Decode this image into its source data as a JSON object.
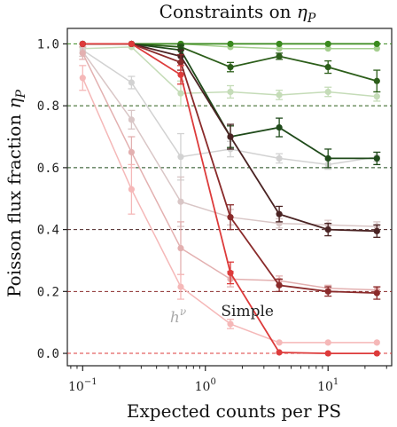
{
  "chart_data": {
    "type": "line",
    "title": "Constraints on η_P",
    "title_parts": {
      "prefix": "Constraints on ",
      "symbol": "η",
      "subscript": "P"
    },
    "xlabel": "Expected counts per PS",
    "ylabel": "Poisson flux fraction η_P",
    "ylabel_parts": {
      "prefix": "Poisson flux fraction ",
      "symbol": "η",
      "subscript": "P"
    },
    "x_scale": "log",
    "xlim": [
      0.075,
      33
    ],
    "ylim": [
      -0.04,
      1.05
    ],
    "x_ticks": [
      {
        "value": 0.1,
        "base": "10",
        "exp": "−1"
      },
      {
        "value": 1,
        "base": "10",
        "exp": "0"
      },
      {
        "value": 10,
        "base": "10",
        "exp": "1"
      }
    ],
    "y_ticks": [
      {
        "value": 0.0,
        "label": "0.0"
      },
      {
        "value": 0.2,
        "label": "0.2"
      },
      {
        "value": 0.4,
        "label": "0.4"
      },
      {
        "value": 0.6,
        "label": "0.6"
      },
      {
        "value": 0.8,
        "label": "0.8"
      },
      {
        "value": 1.0,
        "label": "1.0"
      }
    ],
    "x": [
      0.1,
      0.25,
      0.63,
      1.6,
      4.0,
      10.0,
      25.0
    ],
    "grid": false,
    "legend": "none",
    "annotations": [
      {
        "text_base": "h",
        "text_sup": "ν",
        "x": 0.6,
        "y": 0.1,
        "color": "#aaaaaa",
        "style": "italic"
      },
      {
        "text": "Simple",
        "x": 2.2,
        "y": 0.12,
        "color": "#222222",
        "style": "normal"
      }
    ],
    "series": [
      {
        "group": "simple",
        "target": 1.0,
        "color": "#3a8a1e",
        "y": [
          1.0,
          1.0,
          1.0,
          1.0,
          1.0,
          1.0,
          1.0
        ],
        "err": [
          0.004,
          0.004,
          0.004,
          0.004,
          0.004,
          0.004,
          0.004
        ]
      },
      {
        "group": "simple",
        "target": 0.8,
        "color": "#2c5e1a",
        "y": [
          1.0,
          1.0,
          0.99,
          0.925,
          0.96,
          0.925,
          0.88
        ],
        "err": [
          0.004,
          0.004,
          0.01,
          0.015,
          0.01,
          0.02,
          0.035
        ]
      },
      {
        "group": "simple",
        "target": 0.6,
        "color": "#1f4a1a",
        "y": [
          1.0,
          1.0,
          0.98,
          0.7,
          0.73,
          0.63,
          0.63
        ],
        "err": [
          0.004,
          0.004,
          0.015,
          0.035,
          0.03,
          0.03,
          0.02
        ]
      },
      {
        "group": "simple",
        "target": 0.4,
        "color": "#4a2323",
        "y": [
          1.0,
          1.0,
          0.96,
          0.7,
          0.45,
          0.4,
          0.395
        ],
        "err": [
          0.004,
          0.004,
          0.02,
          0.04,
          0.025,
          0.02,
          0.02
        ]
      },
      {
        "group": "simple",
        "target": 0.2,
        "color": "#8a2b2b",
        "y": [
          1.0,
          1.0,
          0.94,
          0.44,
          0.22,
          0.2,
          0.195
        ],
        "err": [
          0.004,
          0.004,
          0.025,
          0.04,
          0.02,
          0.015,
          0.02
        ]
      },
      {
        "group": "simple",
        "target": 0.0,
        "color": "#dd3b3b",
        "y": [
          1.0,
          1.0,
          0.9,
          0.26,
          0.003,
          0.0,
          0.0
        ],
        "err": [
          0.004,
          0.004,
          0.03,
          0.035,
          0.005,
          0.004,
          0.004
        ]
      },
      {
        "group": "h_nu",
        "target": 1.0,
        "color": "#a6cf90",
        "y": [
          1.0,
          1.0,
          1.0,
          0.99,
          0.985,
          0.985,
          0.985
        ],
        "err": [
          0.004,
          0.004,
          0.004,
          0.005,
          0.005,
          0.005,
          0.005
        ]
      },
      {
        "group": "h_nu",
        "target": 0.8,
        "color": "#c5dcb8",
        "y": [
          0.985,
          0.99,
          0.84,
          0.845,
          0.835,
          0.845,
          0.83
        ],
        "err": [
          0.005,
          0.005,
          0.04,
          0.02,
          0.015,
          0.015,
          0.015
        ]
      },
      {
        "group": "h_nu",
        "target": 0.6,
        "color": "#d2d2d2",
        "y": [
          0.98,
          0.875,
          0.635,
          0.66,
          0.63,
          0.61,
          0.635
        ],
        "err": [
          0.01,
          0.02,
          0.075,
          0.025,
          0.015,
          0.015,
          0.015
        ]
      },
      {
        "group": "h_nu",
        "target": 0.4,
        "color": "#d9c6c6",
        "y": [
          0.975,
          0.755,
          0.49,
          0.44,
          0.42,
          0.415,
          0.41
        ],
        "err": [
          0.015,
          0.03,
          0.08,
          0.025,
          0.015,
          0.015,
          0.015
        ]
      },
      {
        "group": "h_nu",
        "target": 0.2,
        "color": "#e3b0b0",
        "y": [
          0.97,
          0.65,
          0.34,
          0.24,
          0.235,
          0.21,
          0.205
        ],
        "err": [
          0.02,
          0.05,
          0.085,
          0.025,
          0.015,
          0.01,
          0.01
        ]
      },
      {
        "group": "h_nu",
        "target": 0.0,
        "color": "#f5b8b8",
        "y": [
          0.89,
          0.53,
          0.215,
          0.095,
          0.035,
          0.035,
          0.035
        ],
        "err": [
          0.04,
          0.08,
          0.04,
          0.015,
          0.004,
          0.004,
          0.004
        ]
      }
    ]
  }
}
